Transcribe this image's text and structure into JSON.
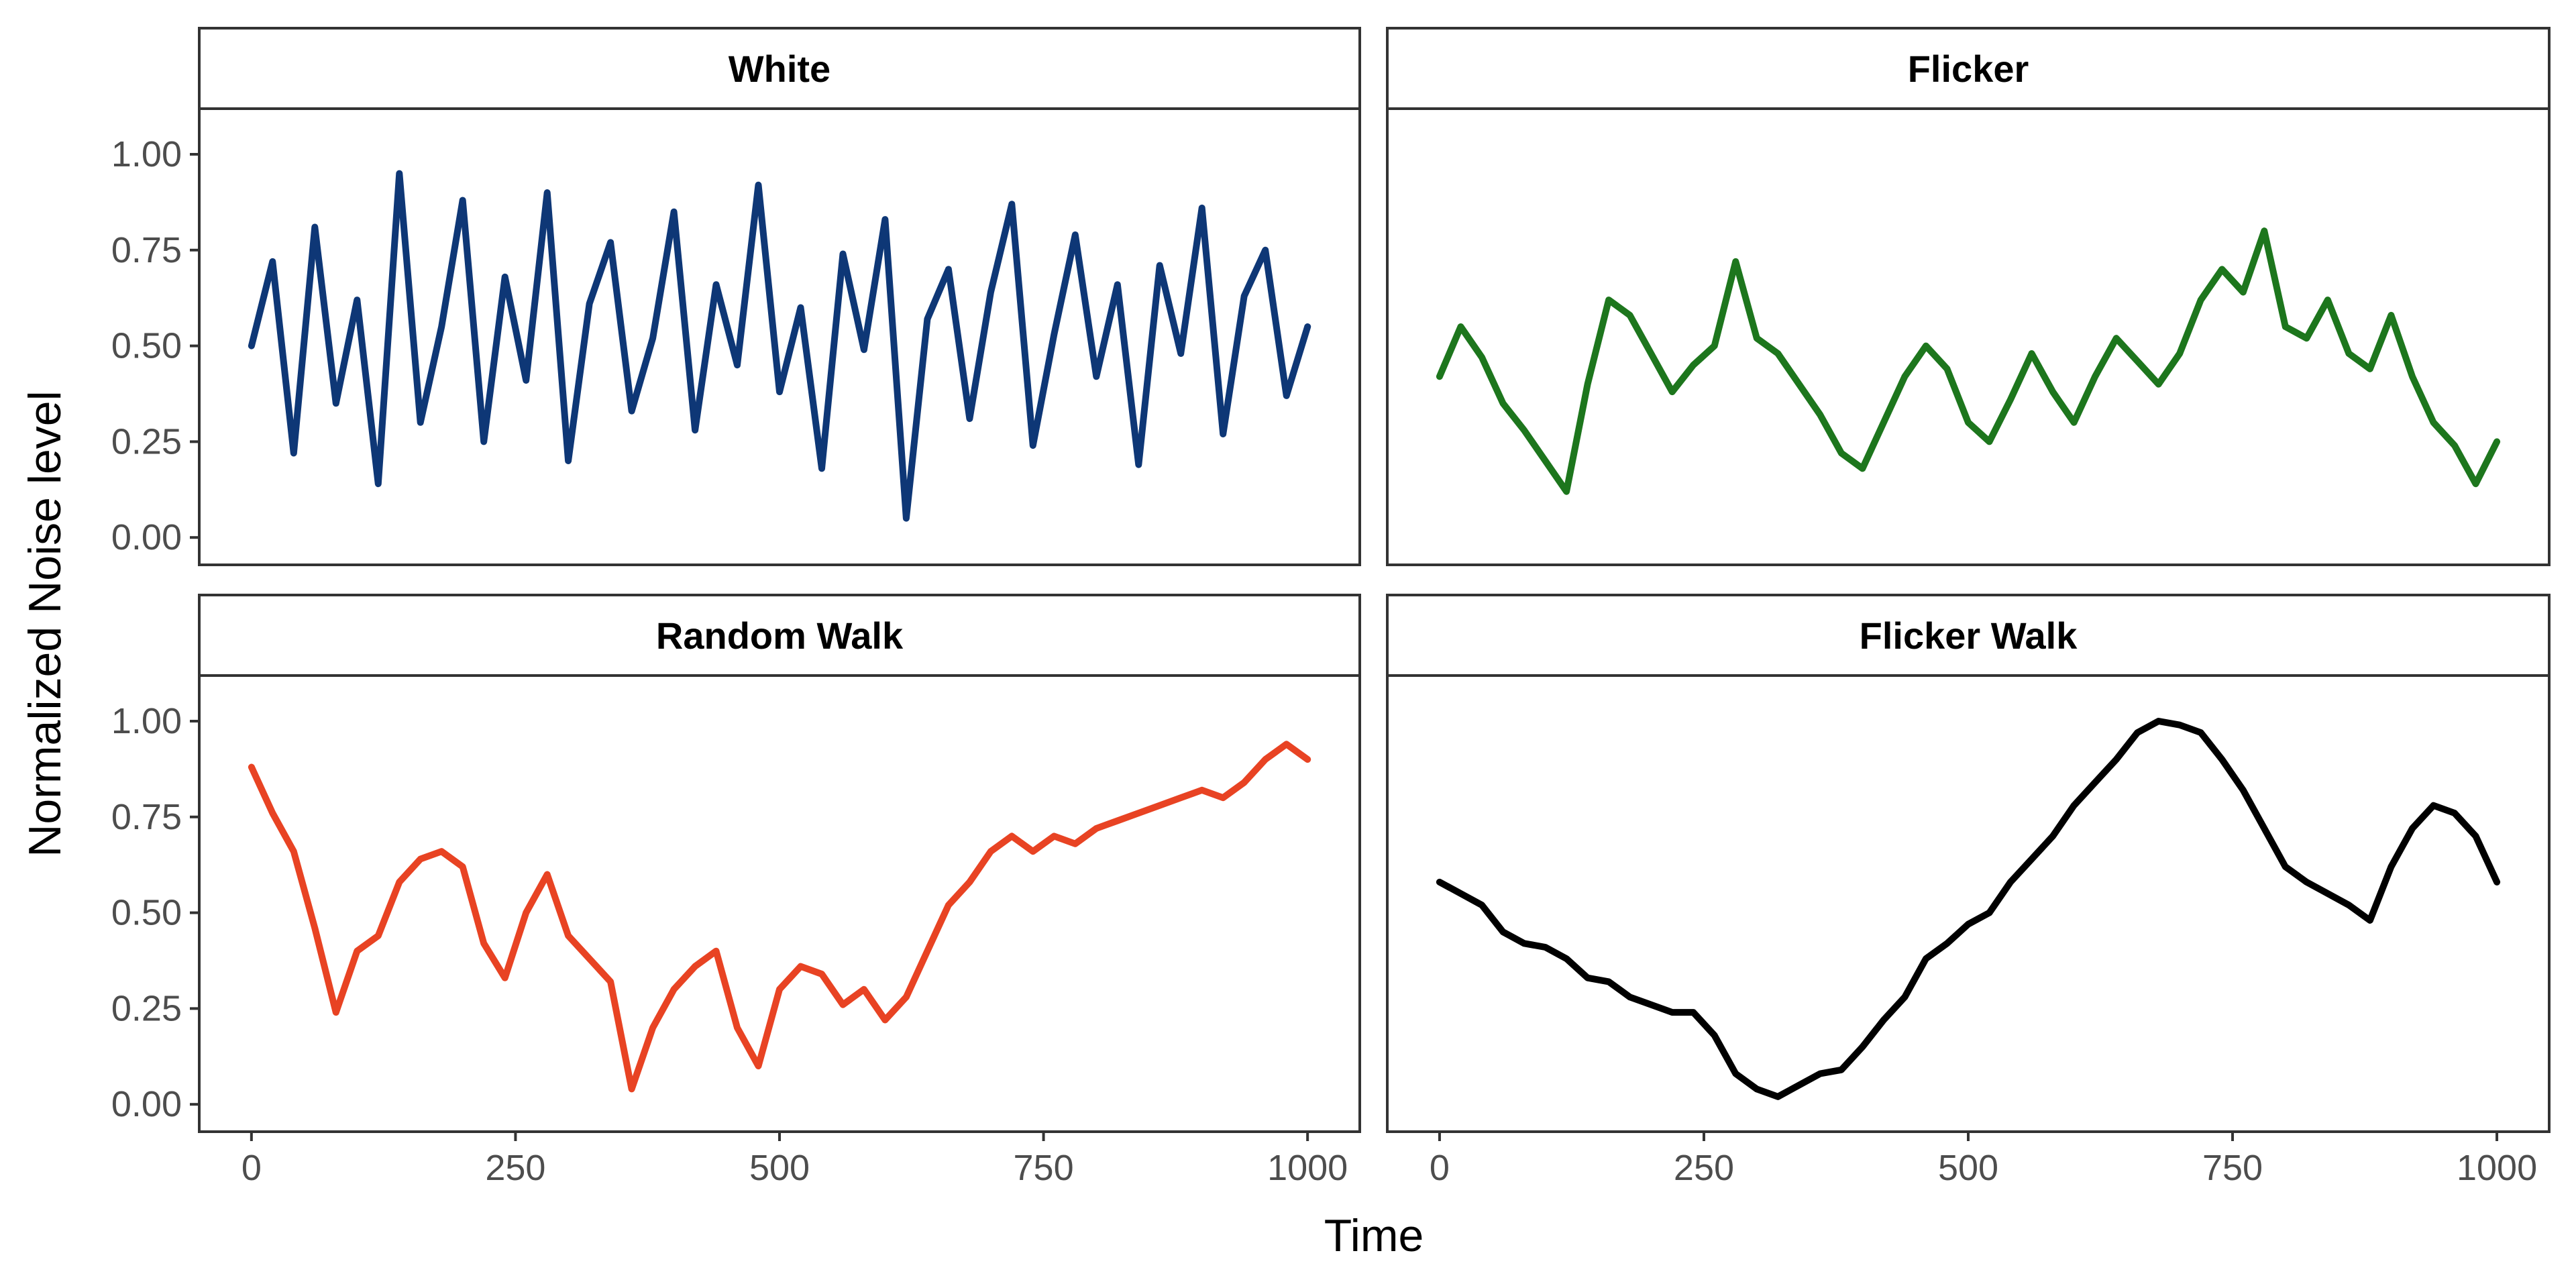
{
  "chart_data": {
    "type": "line",
    "layout": "facet-grid-2x2",
    "xlabel": "Time",
    "ylabel": "Normalized Noise level",
    "xlim": [
      0,
      1000
    ],
    "ylim": [
      0,
      1
    ],
    "x_ticks": [
      0,
      250,
      500,
      750,
      1000
    ],
    "x_tick_labels": [
      "0",
      "250",
      "500",
      "750",
      "1000"
    ],
    "y_ticks": [
      0,
      0.25,
      0.5,
      0.75,
      1
    ],
    "y_tick_labels": [
      "0.00",
      "0.25",
      "0.50",
      "0.75",
      "1.00"
    ],
    "grid": false,
    "legend": "none",
    "panels": [
      {
        "title": "White",
        "color": "#0e3776",
        "x": [
          0,
          20,
          40,
          60,
          80,
          100,
          120,
          140,
          160,
          180,
          200,
          220,
          240,
          260,
          280,
          300,
          320,
          340,
          360,
          380,
          400,
          420,
          440,
          460,
          480,
          500,
          520,
          540,
          560,
          580,
          600,
          620,
          640,
          660,
          680,
          700,
          720,
          740,
          760,
          780,
          800,
          820,
          840,
          860,
          880,
          900,
          920,
          940,
          960,
          980,
          1000
        ],
        "values": [
          0.5,
          0.72,
          0.22,
          0.81,
          0.35,
          0.62,
          0.14,
          0.95,
          0.3,
          0.55,
          0.88,
          0.25,
          0.68,
          0.41,
          0.9,
          0.2,
          0.61,
          0.77,
          0.33,
          0.52,
          0.85,
          0.28,
          0.66,
          0.45,
          0.92,
          0.38,
          0.6,
          0.18,
          0.74,
          0.49,
          0.83,
          0.05,
          0.57,
          0.7,
          0.31,
          0.64,
          0.87,
          0.24,
          0.53,
          0.79,
          0.42,
          0.66,
          0.19,
          0.71,
          0.48,
          0.86,
          0.27,
          0.63,
          0.75,
          0.37,
          0.55
        ]
      },
      {
        "title": "Flicker",
        "color": "#1d761d",
        "x": [
          0,
          20,
          40,
          60,
          80,
          100,
          120,
          140,
          160,
          180,
          200,
          220,
          240,
          260,
          280,
          300,
          320,
          340,
          360,
          380,
          400,
          420,
          440,
          460,
          480,
          500,
          520,
          540,
          560,
          580,
          600,
          620,
          640,
          660,
          680,
          700,
          720,
          740,
          760,
          780,
          800,
          820,
          840,
          860,
          880,
          900,
          920,
          940,
          960,
          980,
          1000
        ],
        "values": [
          0.42,
          0.55,
          0.47,
          0.35,
          0.28,
          0.2,
          0.12,
          0.4,
          0.62,
          0.58,
          0.48,
          0.38,
          0.45,
          0.5,
          0.72,
          0.52,
          0.48,
          0.4,
          0.32,
          0.22,
          0.18,
          0.3,
          0.42,
          0.5,
          0.44,
          0.3,
          0.25,
          0.36,
          0.48,
          0.38,
          0.3,
          0.42,
          0.52,
          0.46,
          0.4,
          0.48,
          0.62,
          0.7,
          0.64,
          0.8,
          0.55,
          0.52,
          0.62,
          0.48,
          0.44,
          0.58,
          0.42,
          0.3,
          0.24,
          0.14,
          0.25
        ]
      },
      {
        "title": "Random Walk",
        "color": "#e84323",
        "x": [
          0,
          20,
          40,
          60,
          80,
          100,
          120,
          140,
          160,
          180,
          200,
          220,
          240,
          260,
          280,
          300,
          320,
          340,
          360,
          380,
          400,
          420,
          440,
          460,
          480,
          500,
          520,
          540,
          560,
          580,
          600,
          620,
          640,
          660,
          680,
          700,
          720,
          740,
          760,
          780,
          800,
          820,
          840,
          860,
          880,
          900,
          920,
          940,
          960,
          980,
          1000
        ],
        "values": [
          0.88,
          0.76,
          0.66,
          0.46,
          0.24,
          0.4,
          0.44,
          0.58,
          0.64,
          0.66,
          0.62,
          0.42,
          0.33,
          0.5,
          0.6,
          0.44,
          0.38,
          0.32,
          0.04,
          0.2,
          0.3,
          0.36,
          0.4,
          0.2,
          0.1,
          0.3,
          0.36,
          0.34,
          0.26,
          0.3,
          0.22,
          0.28,
          0.4,
          0.52,
          0.58,
          0.66,
          0.7,
          0.66,
          0.7,
          0.68,
          0.72,
          0.74,
          0.76,
          0.78,
          0.8,
          0.82,
          0.8,
          0.84,
          0.9,
          0.94,
          0.9
        ]
      },
      {
        "title": "Flicker Walk",
        "color": "#000000",
        "x": [
          0,
          20,
          40,
          60,
          80,
          100,
          120,
          140,
          160,
          180,
          200,
          220,
          240,
          260,
          280,
          300,
          320,
          340,
          360,
          380,
          400,
          420,
          440,
          460,
          480,
          500,
          520,
          540,
          560,
          580,
          600,
          620,
          640,
          660,
          680,
          700,
          720,
          740,
          760,
          780,
          800,
          820,
          840,
          860,
          880,
          900,
          920,
          940,
          960,
          980,
          1000
        ],
        "values": [
          0.58,
          0.55,
          0.52,
          0.45,
          0.42,
          0.41,
          0.38,
          0.33,
          0.32,
          0.28,
          0.26,
          0.24,
          0.24,
          0.18,
          0.08,
          0.04,
          0.02,
          0.05,
          0.08,
          0.09,
          0.15,
          0.22,
          0.28,
          0.38,
          0.42,
          0.47,
          0.5,
          0.58,
          0.64,
          0.7,
          0.78,
          0.84,
          0.9,
          0.97,
          1.0,
          0.99,
          0.97,
          0.9,
          0.82,
          0.72,
          0.62,
          0.58,
          0.55,
          0.52,
          0.48,
          0.62,
          0.72,
          0.78,
          0.76,
          0.7,
          0.58
        ]
      }
    ]
  }
}
